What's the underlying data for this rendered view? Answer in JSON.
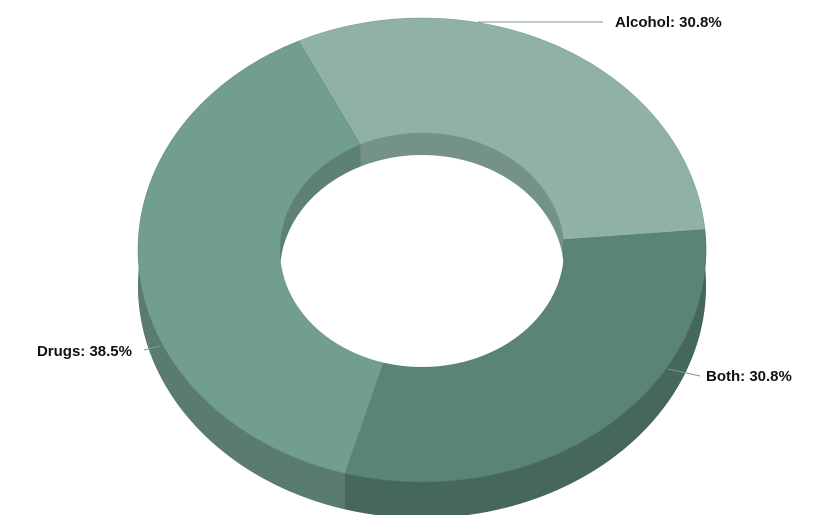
{
  "chart_data": {
    "type": "pie",
    "variant": "3d-donut",
    "title": "",
    "slices": [
      {
        "label": "Alcohol",
        "value": 30.8,
        "display": "Alcohol: 30.8%",
        "color": "#8fb2a4"
      },
      {
        "label": "Both",
        "value": 30.8,
        "display": "Both: 30.8%",
        "color": "#5a8475"
      },
      {
        "label": "Drugs",
        "value": 38.5,
        "display": "Drugs: 38.5%",
        "color": "#729e8f"
      }
    ],
    "legend": "none",
    "data_labels": "outside-with-leader-lines"
  }
}
